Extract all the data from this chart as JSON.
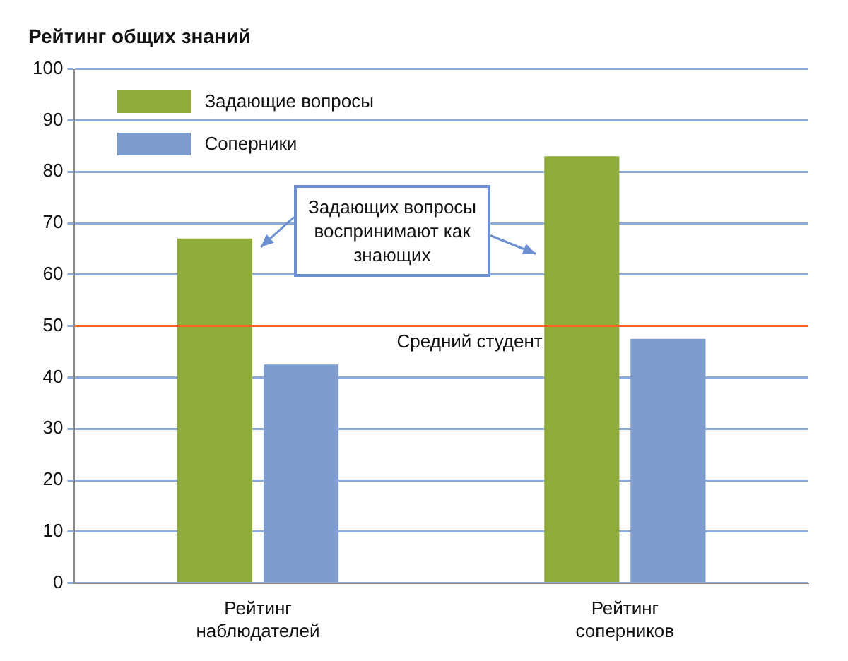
{
  "chart_data": {
    "type": "bar",
    "title": "Рейтинг общих знаний",
    "categories": [
      "Рейтинг наблюдателей",
      "Рейтинг соперников"
    ],
    "series": [
      {
        "name": "Задающие вопросы",
        "color": "#8fac3a",
        "values": [
          67,
          83
        ]
      },
      {
        "name": "Соперники",
        "color": "#7f9ccf",
        "values": [
          42.5,
          47.5
        ]
      }
    ],
    "ylim": [
      0,
      100
    ],
    "yticks": [
      0,
      10,
      20,
      30,
      40,
      50,
      60,
      70,
      80,
      90,
      100
    ],
    "grid": "y",
    "legend": "top left",
    "ref_lines": [
      {
        "axis": "y",
        "value": 50,
        "label": "Средний студент",
        "color": "#f26522"
      }
    ],
    "annotations": [
      "Задающих вопросы воспринимают как знающих"
    ]
  }
}
